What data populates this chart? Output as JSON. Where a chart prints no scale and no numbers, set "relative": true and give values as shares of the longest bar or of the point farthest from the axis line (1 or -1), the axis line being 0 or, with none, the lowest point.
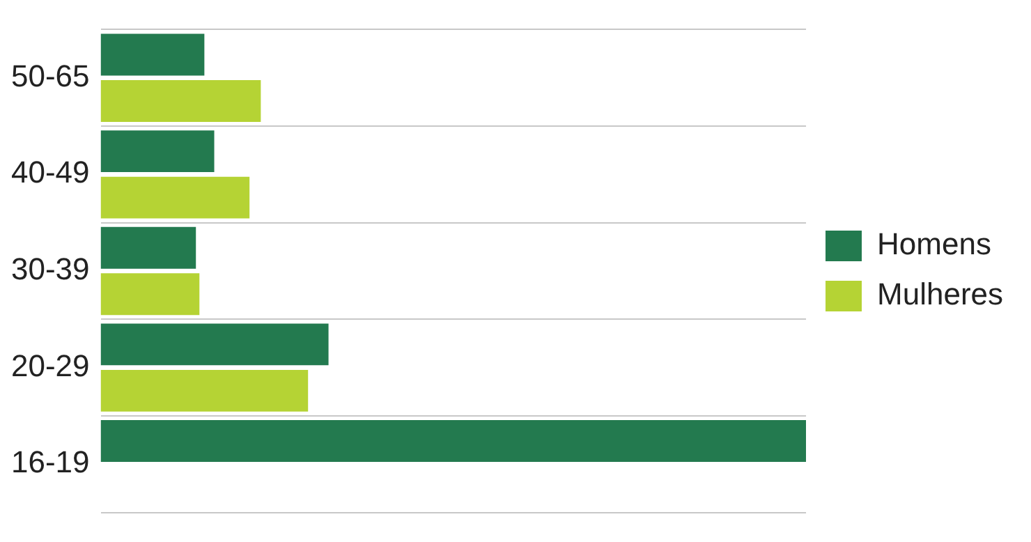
{
  "chart_data": {
    "type": "bar",
    "orientation": "horizontal",
    "relative": true,
    "categories": [
      "50-65",
      "40-49",
      "30-39",
      "20-29",
      "16-19"
    ],
    "series": [
      {
        "name": "Homens",
        "color": "#237a4f",
        "values": [
          0.147,
          0.161,
          0.135,
          0.323,
          1
        ]
      },
      {
        "name": "Mulheres",
        "color": "#b5d334",
        "values": [
          0.227,
          0.211,
          0.14,
          0.294,
          null
        ]
      }
    ],
    "grid": "y",
    "legend": "right"
  }
}
